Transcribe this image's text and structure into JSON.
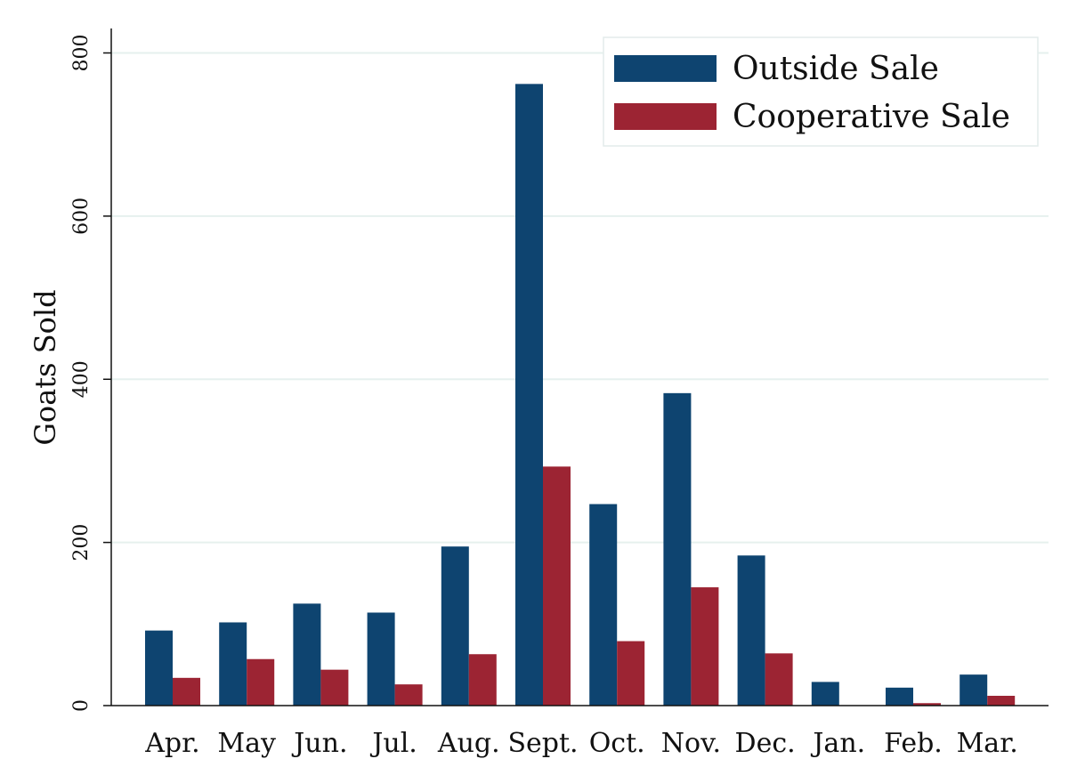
{
  "chart_data": {
    "type": "bar",
    "title": "",
    "xlabel": "",
    "ylabel": "Goats Sold",
    "ylim": [
      0,
      830
    ],
    "yticks": [
      0,
      200,
      400,
      600,
      800
    ],
    "grid": true,
    "legend_position": "top-right",
    "categories": [
      "Apr.",
      "May",
      "Jun.",
      "Jul.",
      "Aug.",
      "Sept.",
      "Oct.",
      "Nov.",
      "Dec.",
      "Jan.",
      "Feb.",
      "Mar."
    ],
    "series": [
      {
        "name": "Outside Sale",
        "color": "#0e4470",
        "values": [
          92,
          102,
          125,
          114,
          195,
          762,
          247,
          383,
          184,
          29,
          22,
          38
        ]
      },
      {
        "name": "Cooperative Sale",
        "color": "#9c2433",
        "values": [
          34,
          57,
          44,
          26,
          63,
          293,
          79,
          145,
          64,
          0,
          3,
          12
        ]
      }
    ]
  }
}
